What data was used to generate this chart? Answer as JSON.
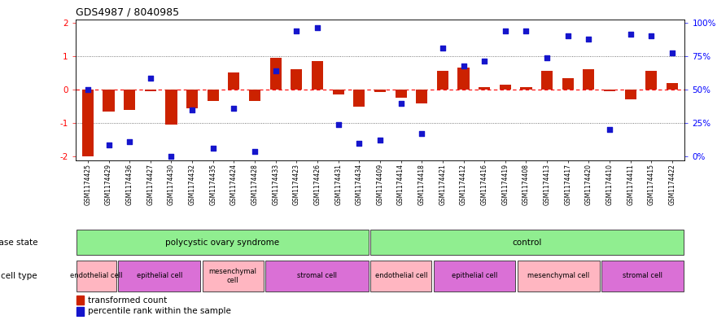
{
  "title": "GDS4987 / 8040985",
  "samples": [
    "GSM1174425",
    "GSM1174429",
    "GSM1174436",
    "GSM1174427",
    "GSM1174430",
    "GSM1174432",
    "GSM1174435",
    "GSM1174424",
    "GSM1174428",
    "GSM1174433",
    "GSM1174423",
    "GSM1174426",
    "GSM1174431",
    "GSM1174434",
    "GSM1174409",
    "GSM1174414",
    "GSM1174418",
    "GSM1174421",
    "GSM1174412",
    "GSM1174416",
    "GSM1174419",
    "GSM1174408",
    "GSM1174413",
    "GSM1174417",
    "GSM1174420",
    "GSM1174410",
    "GSM1174411",
    "GSM1174415",
    "GSM1174422"
  ],
  "bar_values": [
    -2.0,
    -0.65,
    -0.6,
    -0.05,
    -1.05,
    -0.55,
    -0.35,
    0.5,
    -0.35,
    0.95,
    0.6,
    0.85,
    -0.15,
    -0.5,
    -0.08,
    -0.25,
    -0.4,
    0.55,
    0.65,
    0.08,
    0.15,
    0.08,
    0.55,
    0.35,
    0.6,
    -0.05,
    -0.3,
    0.55,
    0.2
  ],
  "dot_values": [
    0.0,
    -1.65,
    -1.55,
    0.35,
    -2.0,
    -0.6,
    -1.75,
    -0.55,
    -1.85,
    0.55,
    1.75,
    1.85,
    -1.05,
    -1.6,
    -1.5,
    -0.4,
    -1.3,
    1.25,
    0.7,
    0.85,
    1.75,
    1.75,
    0.95,
    1.6,
    1.5,
    -1.2,
    1.65,
    1.6,
    1.1
  ],
  "disease_state_groups": [
    {
      "label": "polycystic ovary syndrome",
      "start": 0,
      "end": 14,
      "color": "#90EE90"
    },
    {
      "label": "control",
      "start": 14,
      "end": 29,
      "color": "#90EE90"
    }
  ],
  "cell_type_groups": [
    {
      "label": "endothelial cell",
      "start": 0,
      "end": 2,
      "color": "#FFB6C1"
    },
    {
      "label": "epithelial cell",
      "start": 2,
      "end": 6,
      "color": "#DA70D6"
    },
    {
      "label": "mesenchymal\ncell",
      "start": 6,
      "end": 9,
      "color": "#FFB6C1"
    },
    {
      "label": "stromal cell",
      "start": 9,
      "end": 14,
      "color": "#DA70D6"
    },
    {
      "label": "endothelial cell",
      "start": 14,
      "end": 17,
      "color": "#FFB6C1"
    },
    {
      "label": "epithelial cell",
      "start": 17,
      "end": 21,
      "color": "#DA70D6"
    },
    {
      "label": "mesenchymal cell",
      "start": 21,
      "end": 25,
      "color": "#FFB6C1"
    },
    {
      "label": "stromal cell",
      "start": 25,
      "end": 29,
      "color": "#DA70D6"
    }
  ],
  "ylim": [
    -2.1,
    2.1
  ],
  "yticks_left": [
    -2,
    -1,
    0,
    1,
    2
  ],
  "bar_color": "#CC2200",
  "dot_color": "#1515CC",
  "hline_color": "#FF0000",
  "dotted_line_color": "#555555",
  "left_label_color": "#000000",
  "right_tick_labels": [
    "0%",
    "25%",
    "50%",
    "75%",
    "100%"
  ],
  "right_tick_positions": [
    -2.0,
    -1.0,
    0.0,
    1.0,
    2.0
  ]
}
